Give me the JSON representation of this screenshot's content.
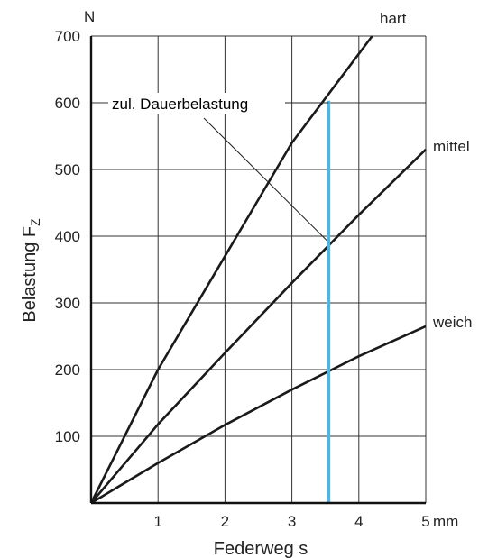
{
  "chart_data": {
    "type": "line",
    "xlabel": "Federweg s",
    "ylabel": "Belastung F",
    "ylabel_sub": "Z",
    "x_unit": "mm",
    "y_unit": "N",
    "xlim": [
      0,
      5
    ],
    "ylim": [
      0,
      700
    ],
    "x_ticks": [
      "1",
      "2",
      "3",
      "4",
      "5"
    ],
    "y_ticks": [
      "100",
      "200",
      "300",
      "400",
      "500",
      "600",
      "700"
    ],
    "grid": true,
    "series": [
      {
        "name": "hart",
        "color": "#1a1a1a",
        "points": [
          [
            0,
            0
          ],
          [
            1,
            200
          ],
          [
            2,
            370
          ],
          [
            3,
            540
          ],
          [
            4.2,
            700
          ]
        ]
      },
      {
        "name": "mittel",
        "color": "#1a1a1a",
        "points": [
          [
            0,
            0
          ],
          [
            1,
            118
          ],
          [
            2,
            225
          ],
          [
            3,
            330
          ],
          [
            4,
            432
          ],
          [
            5,
            530
          ]
        ]
      },
      {
        "name": "weich",
        "color": "#1a1a1a",
        "points": [
          [
            0,
            0
          ],
          [
            1,
            60
          ],
          [
            2,
            117
          ],
          [
            3,
            170
          ],
          [
            4,
            220
          ],
          [
            5,
            265
          ]
        ]
      }
    ],
    "annotation": {
      "text": "zul. Dauerbelastung",
      "color": "#49b8e6",
      "x": 3.55,
      "y_range": [
        0,
        603
      ],
      "pointer_to": [
        3.55,
        388
      ]
    }
  }
}
